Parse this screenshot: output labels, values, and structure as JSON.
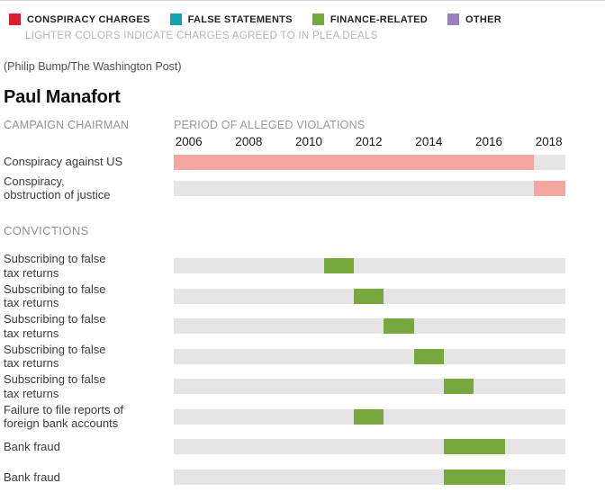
{
  "byline": "(Philip Bump/The Washington Post)",
  "colors": {
    "conspiracy": "#d6202f",
    "conspiracy_plea": "#f4a7a1",
    "false_statements": "#17a2b0",
    "finance": "#77a83e",
    "other": "#9a7ec0",
    "track": "#e5e5e5"
  },
  "chart_data": {
    "type": "timeline-bar",
    "title": "Paul Manafort",
    "subtitle": "CAMPAIGN CHAIRMAN",
    "legend": {
      "items": [
        {
          "key": "conspiracy",
          "label": "CONSPIRACY CHARGES"
        },
        {
          "key": "false_statements",
          "label": "FALSE STATEMENTS"
        },
        {
          "key": "finance",
          "label": "FINANCE-RELATED"
        },
        {
          "key": "other",
          "label": "OTHER"
        }
      ],
      "note": "LIGHTER COLORS INDICATE CHARGES AGREED TO IN PLEA DEALS"
    },
    "axis": {
      "label": "PERIOD OF ALLEGED VIOLATIONS",
      "domain": [
        2005.5,
        2018.55
      ],
      "ticks": [
        2006,
        2008,
        2010,
        2012,
        2014,
        2016,
        2018
      ],
      "grid": false
    },
    "sections": [
      {
        "header": null,
        "rows": [
          {
            "label_lines": [
              "Conspiracy against US"
            ],
            "segments": [
              {
                "color": "conspiracy_plea",
                "start": 2005.5,
                "end": 2017.5,
                "plea": true
              }
            ]
          },
          {
            "label_lines": [
              "Conspiracy,",
              "obstruction of justice"
            ],
            "segments": [
              {
                "color": "conspiracy_plea",
                "start": 2017.5,
                "end": 2018.55,
                "plea": true
              }
            ]
          }
        ]
      },
      {
        "header": "CONVICTIONS",
        "rows": [
          {
            "label_lines": [
              "Subscribing to false",
              "tax returns"
            ],
            "segments": [
              {
                "color": "finance",
                "start": 2010.5,
                "end": 2011.5,
                "plea": false
              }
            ]
          },
          {
            "label_lines": [
              "Subscribing to false",
              "tax returns"
            ],
            "segments": [
              {
                "color": "finance",
                "start": 2011.5,
                "end": 2012.5,
                "plea": false
              }
            ]
          },
          {
            "label_lines": [
              "Subscribing to false",
              "tax returns"
            ],
            "segments": [
              {
                "color": "finance",
                "start": 2012.5,
                "end": 2013.5,
                "plea": false
              }
            ]
          },
          {
            "label_lines": [
              "Subscribing to false",
              "tax returns"
            ],
            "segments": [
              {
                "color": "finance",
                "start": 2013.5,
                "end": 2014.5,
                "plea": false
              }
            ]
          },
          {
            "label_lines": [
              "Subscribing to false",
              "tax returns"
            ],
            "segments": [
              {
                "color": "finance",
                "start": 2014.5,
                "end": 2015.5,
                "plea": false
              }
            ]
          },
          {
            "label_lines": [
              "Failure to file reports of",
              "foreign bank accounts"
            ],
            "segments": [
              {
                "color": "finance",
                "start": 2011.5,
                "end": 2012.5,
                "plea": false
              }
            ]
          },
          {
            "label_lines": [
              "Bank fraud"
            ],
            "segments": [
              {
                "color": "finance",
                "start": 2014.5,
                "end": 2016.55,
                "plea": false
              }
            ]
          },
          {
            "label_lines": [
              "Bank fraud"
            ],
            "segments": [
              {
                "color": "finance",
                "start": 2014.5,
                "end": 2016.55,
                "plea": false
              }
            ]
          }
        ]
      }
    ]
  }
}
